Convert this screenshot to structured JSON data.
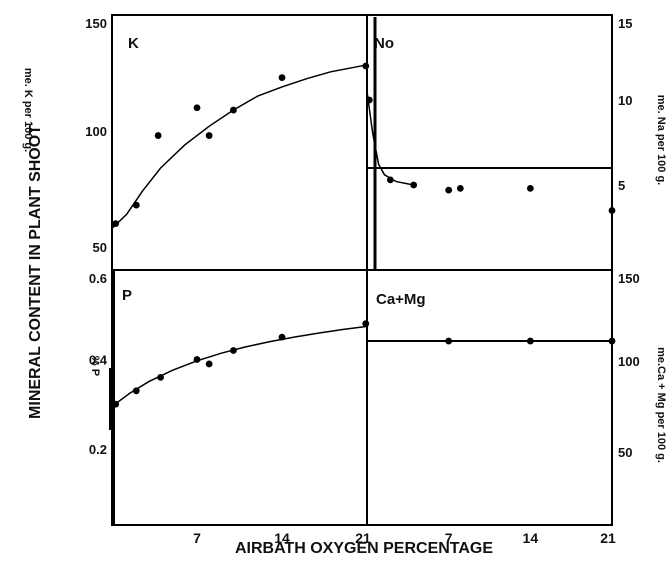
{
  "figure": {
    "ylabel_left": "MINERAL CONTENT IN PLANT SHOOT",
    "xlabel": "AIRBATH OXYGEN PERCENTAGE"
  },
  "chart_data": [
    {
      "type": "scatter",
      "panel_label": "K",
      "ylabel": "me. K per 100 g.",
      "yticks": [
        "50",
        "100",
        "150"
      ],
      "xticks": [
        "7",
        "14",
        "21"
      ],
      "xlim": [
        0,
        21
      ],
      "ylim": [
        40,
        150
      ],
      "points": {
        "x": [
          0.3,
          2.0,
          3.8,
          7.0,
          8.0,
          10.0,
          14.0,
          20.9
        ],
        "y": [
          60,
          68,
          98,
          110,
          98,
          109,
          123,
          128
        ]
      },
      "fit_line": {
        "x": [
          0.0,
          1.2,
          2.5,
          4.0,
          6.0,
          8.0,
          10.0,
          12.0,
          14.0,
          16.0,
          18.0,
          20.0,
          21.0
        ],
        "y": [
          58,
          64,
          74,
          84,
          94,
          102,
          109,
          115,
          119,
          122.5,
          125.5,
          127.5,
          128.5
        ]
      },
      "grid": false
    },
    {
      "type": "scatter",
      "panel_label": "No",
      "ylabel": "me. Na per 100 g.",
      "yticks": [
        "5",
        "10",
        "15"
      ],
      "xticks": [
        "7",
        "14",
        "21"
      ],
      "xlim": [
        0,
        21
      ],
      "ylim": [
        0,
        15
      ],
      "points": {
        "x": [
          0.2,
          2.0,
          4.0,
          7.0,
          8.0,
          14.0,
          21.0
        ],
        "y": [
          10.0,
          5.3,
          5.0,
          4.7,
          4.8,
          4.8,
          3.5
        ]
      },
      "fit_line": {
        "x": [
          0.0,
          0.5,
          1.0,
          1.5,
          2.5,
          4.0
        ],
        "y": [
          10.5,
          8.0,
          6.2,
          5.6,
          5.2,
          5.0
        ]
      },
      "grid": false
    },
    {
      "type": "scatter",
      "panel_label": "P",
      "ylabel": "% P",
      "yticks": [
        "0.2",
        "0.4",
        "0.6"
      ],
      "xticks": [
        "7",
        "14",
        "21"
      ],
      "xlim": [
        0,
        21
      ],
      "ylim": [
        0.03,
        0.6
      ],
      "points": {
        "x": [
          0.3,
          2.0,
          4.0,
          7.0,
          8.0,
          10.0,
          14.0,
          20.9
        ],
        "y": [
          0.3,
          0.33,
          0.36,
          0.4,
          0.39,
          0.42,
          0.45,
          0.48
        ]
      },
      "fit_line": {
        "x": [
          0.0,
          1.5,
          3.0,
          5.0,
          7.0,
          9.0,
          11.0,
          13.0,
          15.0,
          17.0,
          19.0,
          21.0
        ],
        "y": [
          0.295,
          0.325,
          0.35,
          0.376,
          0.397,
          0.414,
          0.428,
          0.44,
          0.45,
          0.459,
          0.467,
          0.474
        ]
      },
      "grid": false
    },
    {
      "type": "scatter",
      "panel_label": "Ca+Mg",
      "ylabel": "me.Ca + Mg per 100 g.",
      "yticks": [
        "50",
        "100",
        "150"
      ],
      "xticks": [
        "7",
        "14",
        "21"
      ],
      "xlim": [
        0,
        21
      ],
      "ylim": [
        10,
        150
      ],
      "points": {
        "x": [
          7.0,
          14.0,
          21.0
        ],
        "y": [
          111,
          111,
          111
        ]
      },
      "fit_line": {
        "x": [
          0.0,
          21.0
        ],
        "y": [
          111,
          111
        ]
      },
      "grid": false
    }
  ]
}
